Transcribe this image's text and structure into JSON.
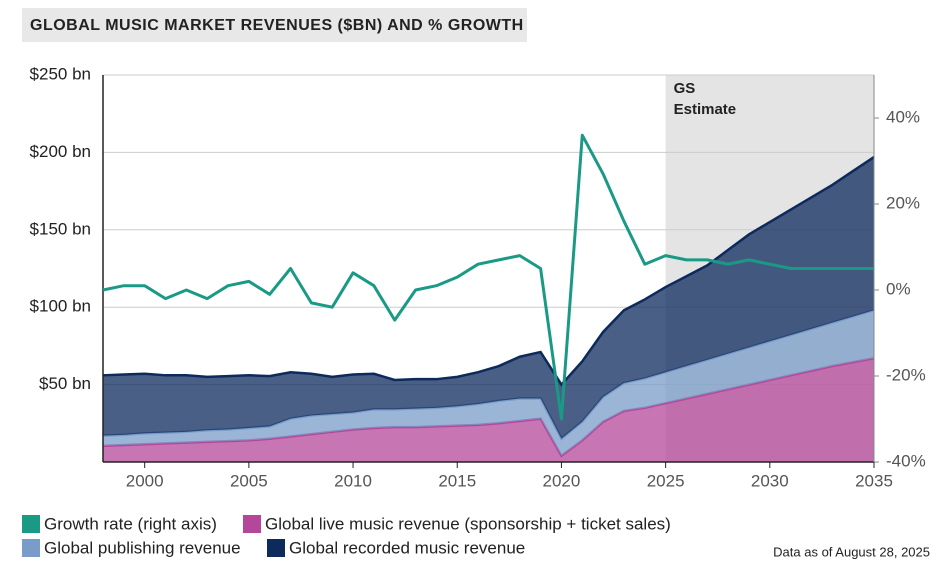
{
  "chart_data": {
    "type": "stacked-area-line",
    "title": "GLOBAL MUSIC MARKET REVENUES ($BN) AND % GROWTH",
    "note": "Data as of August 28, 2025",
    "estimate_label": [
      "GS",
      "Estimate"
    ],
    "estimate_from": 2025,
    "x": [
      1998,
      1999,
      2000,
      2001,
      2002,
      2003,
      2004,
      2005,
      2006,
      2007,
      2008,
      2009,
      2010,
      2011,
      2012,
      2013,
      2014,
      2015,
      2016,
      2017,
      2018,
      2019,
      2020,
      2021,
      2022,
      2023,
      2024,
      2025,
      2026,
      2027,
      2028,
      2029,
      2030,
      2031,
      2032,
      2033,
      2034,
      2035
    ],
    "xlim": [
      1998,
      2035
    ],
    "xticks": [
      2000,
      2005,
      2010,
      2015,
      2020,
      2025,
      2030,
      2035
    ],
    "ylim": [
      0,
      250
    ],
    "yticks": [
      {
        "value": 50,
        "label": "$50 bn"
      },
      {
        "value": 100,
        "label": "$100 bn"
      },
      {
        "value": 150,
        "label": "$150 bn"
      },
      {
        "value": 200,
        "label": "$200 bn"
      },
      {
        "value": 250,
        "label": "$250 bn"
      }
    ],
    "y2lim": [
      -40,
      50
    ],
    "y2ticks": [
      {
        "value": -40,
        "label": "-40%"
      },
      {
        "value": -20,
        "label": "-20%"
      },
      {
        "value": 0,
        "label": "0%"
      },
      {
        "value": 20,
        "label": "20%"
      },
      {
        "value": 40,
        "label": "40%"
      }
    ],
    "grid": true,
    "series": [
      {
        "name": "Growth rate (right axis)",
        "color": "#1a9a85",
        "axis": "y2",
        "values": [
          0,
          1,
          1,
          -2,
          0,
          -2,
          1,
          2,
          -1,
          5,
          -3,
          -4,
          4,
          1,
          -7,
          0,
          1,
          3,
          6,
          7,
          8,
          5,
          -30,
          36,
          27,
          16,
          6,
          8,
          7,
          7,
          6,
          7,
          6,
          5,
          5,
          5,
          5,
          5
        ]
      },
      {
        "name": "Global live music revenue (sponsorship + ticket sales)",
        "color": "#b5479a",
        "values": [
          10.4,
          11,
          11.5,
          12,
          12.5,
          13,
          13.5,
          14,
          15,
          16.5,
          18,
          19.5,
          21,
          22,
          22.5,
          22.5,
          23,
          23.5,
          24,
          25,
          26.5,
          28,
          4,
          14,
          26,
          33,
          35,
          38,
          41,
          44,
          47,
          50,
          53,
          56,
          59,
          62,
          64.5,
          67
        ]
      },
      {
        "name": "Global publishing revenue",
        "color": "#7a9cc8",
        "values": [
          6.6,
          6.5,
          7,
          7,
          7,
          7.5,
          7.5,
          8,
          8,
          11.5,
          12,
          11.5,
          11,
          12,
          11.5,
          12,
          12,
          12.5,
          13.5,
          14.5,
          14.5,
          13,
          11,
          12,
          16,
          18,
          19,
          20,
          21,
          22,
          23,
          24,
          25,
          26,
          27,
          28,
          29.5,
          31
        ]
      },
      {
        "name": "Global recorded music revenue",
        "color": "#0d2a5c",
        "values": [
          39,
          39,
          38.5,
          37,
          36.5,
          34.5,
          34.5,
          34,
          32.5,
          30,
          27,
          24,
          24.5,
          23,
          19,
          19,
          18.5,
          19,
          20.5,
          22.5,
          27,
          30,
          35,
          39,
          42,
          47,
          51,
          55,
          58,
          61,
          67,
          73,
          77,
          81,
          85,
          89,
          94,
          99
        ]
      }
    ]
  }
}
